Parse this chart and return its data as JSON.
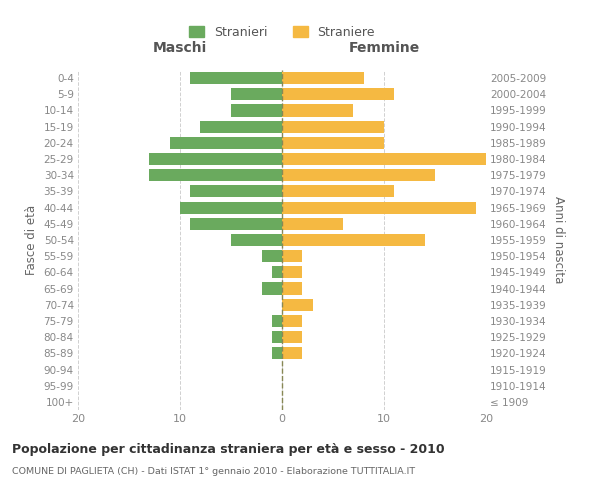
{
  "age_groups": [
    "100+",
    "95-99",
    "90-94",
    "85-89",
    "80-84",
    "75-79",
    "70-74",
    "65-69",
    "60-64",
    "55-59",
    "50-54",
    "45-49",
    "40-44",
    "35-39",
    "30-34",
    "25-29",
    "20-24",
    "15-19",
    "10-14",
    "5-9",
    "0-4"
  ],
  "birth_years": [
    "≤ 1909",
    "1910-1914",
    "1915-1919",
    "1920-1924",
    "1925-1929",
    "1930-1934",
    "1935-1939",
    "1940-1944",
    "1945-1949",
    "1950-1954",
    "1955-1959",
    "1960-1964",
    "1965-1969",
    "1970-1974",
    "1975-1979",
    "1980-1984",
    "1985-1989",
    "1990-1994",
    "1995-1999",
    "2000-2004",
    "2005-2009"
  ],
  "maschi": [
    0,
    0,
    0,
    1,
    1,
    1,
    0,
    2,
    1,
    2,
    5,
    9,
    10,
    9,
    13,
    13,
    11,
    8,
    5,
    5,
    9
  ],
  "femmine": [
    0,
    0,
    0,
    2,
    2,
    2,
    3,
    2,
    2,
    2,
    14,
    6,
    19,
    11,
    15,
    20,
    10,
    10,
    7,
    11,
    8
  ],
  "color_maschi": "#6aaa5e",
  "color_femmine": "#f5b942",
  "title": "Popolazione per cittadinanza straniera per età e sesso - 2010",
  "subtitle": "COMUNE DI PAGLIETA (CH) - Dati ISTAT 1° gennaio 2010 - Elaborazione TUTTITALIA.IT",
  "xlabel_left": "Maschi",
  "xlabel_right": "Femmine",
  "ylabel_left": "Fasce di età",
  "ylabel_right": "Anni di nascita",
  "legend_maschi": "Stranieri",
  "legend_femmine": "Straniere",
  "xlim": 20,
  "background_color": "#ffffff",
  "grid_color": "#d0d0d0"
}
